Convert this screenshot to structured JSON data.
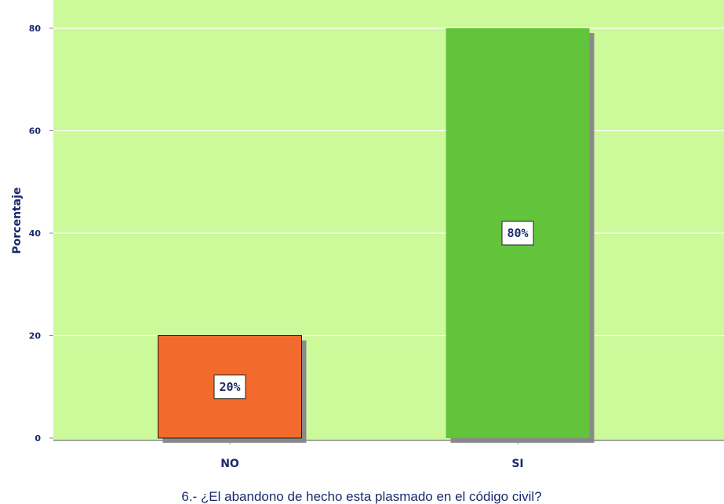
{
  "chart_data": {
    "type": "bar",
    "categories": [
      "NO",
      "SI"
    ],
    "values": [
      20,
      80
    ],
    "data_labels": [
      "20%",
      "80%"
    ],
    "bar_colors": [
      "#f26b2c",
      "#62c43a"
    ],
    "xlabel": "6.- ¿El abandono de hecho esta plasmado en el código civil?",
    "ylabel": "Porcentaje",
    "ylim": [
      0,
      80
    ],
    "yticks": [
      0,
      20,
      40,
      60,
      80
    ],
    "grid": true,
    "plot_background": "#ccfa9a",
    "gridline_color": "#ffffff",
    "text_color": "#1a2a6c"
  }
}
